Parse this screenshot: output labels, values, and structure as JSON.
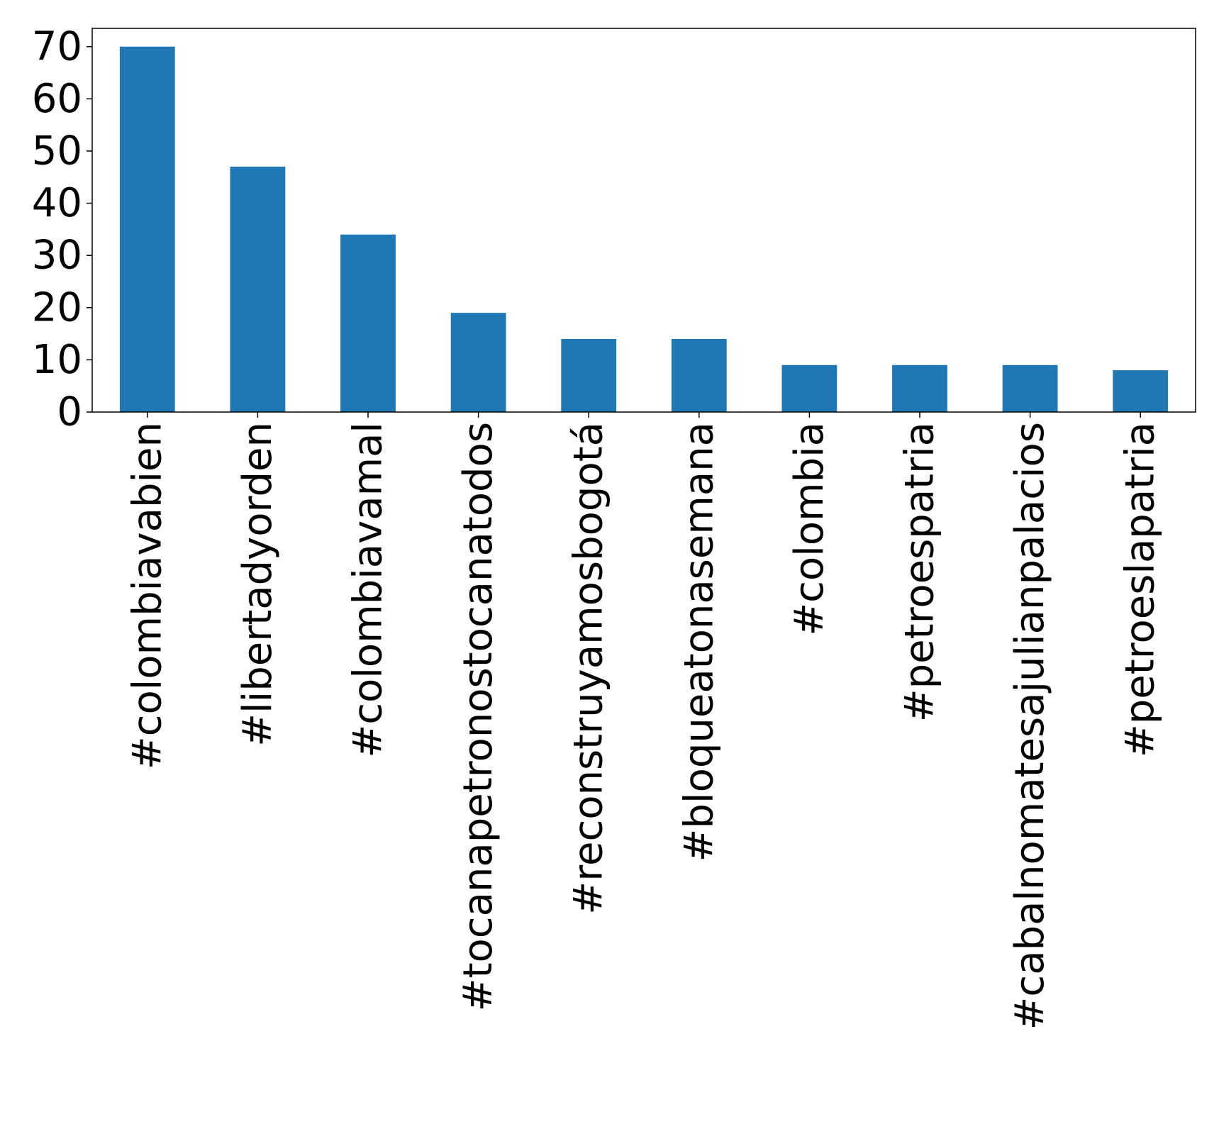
{
  "chart_data": {
    "type": "bar",
    "title": "",
    "xlabel": "",
    "ylabel": "",
    "categories": [
      "#colombiavabien",
      "#libertadyorden",
      "#colombiavamal",
      "#tocanapetronostocanatodos",
      "#reconstruyamosbogotá",
      "#bloqueatonasemana",
      "#colombia",
      "#petroespatria",
      "#cabalnomatesajulianpalacios",
      "#petroeslapatria"
    ],
    "values": [
      70,
      47,
      34,
      19,
      14,
      14,
      9,
      9,
      9,
      8
    ],
    "ylim": [
      0,
      73.5
    ],
    "yticks": [
      0,
      10,
      20,
      30,
      40,
      50,
      60,
      70
    ],
    "grid": false,
    "legend": "none",
    "bar_color": "#1f77b4"
  }
}
